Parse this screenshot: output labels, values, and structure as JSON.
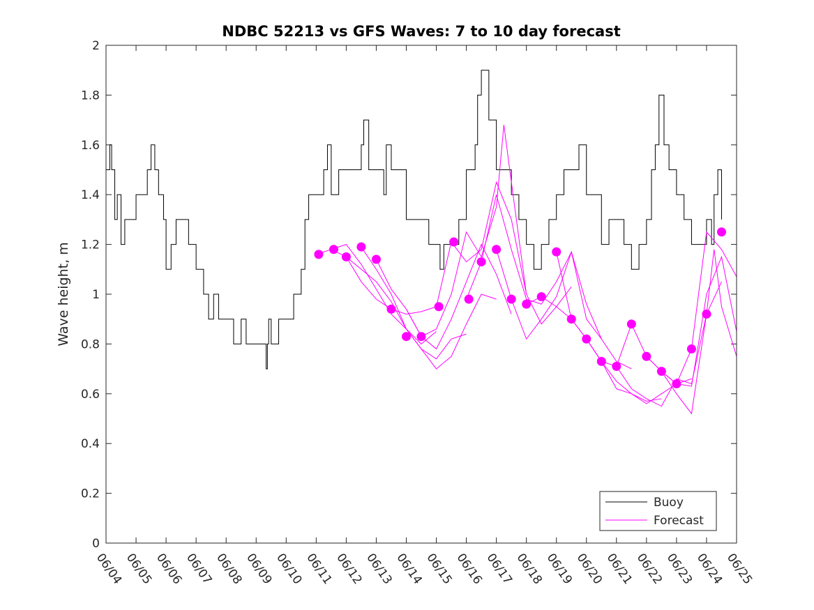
{
  "chart_data": {
    "type": "line",
    "title": "NDBC 52213 vs GFS Waves: 7 to 10 day forecast",
    "xlabel": "",
    "ylabel": "Wave height, m",
    "xlim": [
      "06/04",
      "06/25"
    ],
    "ylim": [
      0,
      2
    ],
    "x_tick_labels": [
      "06/04",
      "06/05",
      "06/06",
      "06/07",
      "06/08",
      "06/09",
      "06/10",
      "06/11",
      "06/12",
      "06/13",
      "06/14",
      "06/15",
      "06/16",
      "06/17",
      "06/18",
      "06/19",
      "06/20",
      "06/21",
      "06/22",
      "06/23",
      "06/24",
      "06/25"
    ],
    "y_ticks": [
      0,
      0.2,
      0.4,
      0.6,
      0.8,
      1,
      1.2,
      1.4,
      1.6,
      1.8,
      2
    ],
    "y_tick_labels": [
      "0",
      "0.2",
      "0.4",
      "0.6",
      "0.8",
      "1",
      "1.2",
      "1.4",
      "1.6",
      "1.8",
      "2"
    ],
    "grid": false,
    "legend_position": "bottom-right",
    "series": [
      {
        "name": "Buoy",
        "color": "#000000",
        "style": "line",
        "x": [
          "06/04 00:00",
          "06/04 03:00",
          "06/04 04:30",
          "06/04 07:00",
          "06/04 09:00",
          "06/04 12:00",
          "06/04 15:00",
          "06/04 18:00",
          "06/05 00:00",
          "06/05 06:00",
          "06/05 09:00",
          "06/05 12:00",
          "06/05 15:00",
          "06/05 18:00",
          "06/05 22:00",
          "06/06 00:00",
          "06/06 04:00",
          "06/06 08:00",
          "06/06 12:00",
          "06/06 18:00",
          "06/07 00:00",
          "06/07 06:00",
          "06/07 10:00",
          "06/07 14:00",
          "06/07 18:00",
          "06/08 00:00",
          "06/08 06:00",
          "06/08 12:00",
          "06/08 16:00",
          "06/08 20:00",
          "06/09 00:00",
          "06/09 06:00",
          "06/09 08:00",
          "06/09 09:00",
          "06/09 10:00",
          "06/09 12:00",
          "06/09 18:00",
          "06/10 00:00",
          "06/10 06:00",
          "06/10 12:00",
          "06/10 15:00",
          "06/10 18:00",
          "06/11 00:00",
          "06/11 06:00",
          "06/11 09:00",
          "06/11 12:00",
          "06/11 18:00",
          "06/12 00:00",
          "06/12 06:00",
          "06/12 12:00",
          "06/12 14:00",
          "06/12 18:00",
          "06/13 00:00",
          "06/13 06:00",
          "06/13 08:00",
          "06/13 12:00",
          "06/13 18:00",
          "06/14 00:00",
          "06/14 06:00",
          "06/14 12:00",
          "06/14 18:00",
          "06/15 00:00",
          "06/15 03:00",
          "06/15 06:00",
          "06/15 12:00",
          "06/15 18:00",
          "06/16 00:00",
          "06/16 04:00",
          "06/16 07:00",
          "06/16 09:00",
          "06/16 12:00",
          "06/16 18:00",
          "06/17 00:00",
          "06/17 06:00",
          "06/17 12:00",
          "06/17 18:00",
          "06/18 00:00",
          "06/18 06:00",
          "06/18 12:00",
          "06/18 18:00",
          "06/19 00:00",
          "06/19 06:00",
          "06/19 12:00",
          "06/19 18:00",
          "06/20 00:00",
          "06/20 06:00",
          "06/20 12:00",
          "06/20 18:00",
          "06/21 00:00",
          "06/21 06:00",
          "06/21 12:00",
          "06/21 18:00",
          "06/22 00:00",
          "06/22 04:00",
          "06/22 07:00",
          "06/22 10:00",
          "06/22 14:00",
          "06/22 18:00",
          "06/23 00:00",
          "06/23 06:00",
          "06/23 12:00",
          "06/23 18:00",
          "06/24 00:00",
          "06/24 04:00",
          "06/24 06:00",
          "06/24 09:00",
          "06/24 12:00"
        ],
        "y": [
          1.5,
          1.6,
          1.5,
          1.3,
          1.4,
          1.2,
          1.3,
          1.3,
          1.4,
          1.4,
          1.5,
          1.6,
          1.5,
          1.4,
          1.3,
          1.1,
          1.2,
          1.3,
          1.3,
          1.2,
          1.1,
          1.0,
          0.9,
          1.0,
          0.9,
          0.9,
          0.8,
          0.9,
          0.8,
          0.8,
          0.8,
          0.8,
          0.7,
          0.8,
          0.9,
          0.8,
          0.9,
          0.9,
          1.0,
          1.1,
          1.3,
          1.4,
          1.4,
          1.5,
          1.6,
          1.4,
          1.5,
          1.5,
          1.5,
          1.6,
          1.7,
          1.5,
          1.5,
          1.4,
          1.6,
          1.5,
          1.5,
          1.3,
          1.3,
          1.3,
          1.2,
          1.2,
          1.1,
          1.2,
          1.2,
          1.3,
          1.5,
          1.5,
          1.6,
          1.8,
          1.9,
          1.7,
          1.5,
          1.5,
          1.4,
          1.3,
          1.2,
          1.1,
          1.2,
          1.3,
          1.4,
          1.5,
          1.5,
          1.6,
          1.4,
          1.4,
          1.2,
          1.3,
          1.3,
          1.2,
          1.1,
          1.2,
          1.3,
          1.5,
          1.6,
          1.8,
          1.6,
          1.5,
          1.4,
          1.3,
          1.2,
          1.2,
          1.3,
          1.2,
          1.4,
          1.5,
          1.3
        ]
      },
      {
        "name": "Forecast",
        "color": "#ff00ff",
        "style": "line",
        "runs": [
          {
            "x": [
              "06/11 00:00",
              "06/11 12:00",
              "06/12 00:00",
              "06/12 12:00",
              "06/13 00:00",
              "06/13 12:00",
              "06/14 00:00",
              "06/14 12:00",
              "06/15 00:00"
            ],
            "y": [
              1.16,
              1.18,
              1.15,
              1.05,
              0.98,
              0.94,
              0.92,
              0.93,
              0.95
            ]
          },
          {
            "x": [
              "06/11 12:00",
              "06/12 00:00",
              "06/12 12:00",
              "06/13 00:00",
              "06/13 12:00",
              "06/14 00:00",
              "06/14 12:00",
              "06/15 00:00"
            ],
            "y": [
              1.18,
              1.2,
              1.12,
              1.02,
              0.92,
              0.86,
              0.8,
              0.85
            ]
          },
          {
            "x": [
              "06/12 00:00",
              "06/12 12:00",
              "06/13 00:00",
              "06/13 12:00",
              "06/14 00:00",
              "06/14 12:00",
              "06/15 00:00",
              "06/15 12:00",
              "06/16 00:00"
            ],
            "y": [
              1.15,
              1.1,
              1.05,
              0.97,
              0.86,
              0.78,
              0.74,
              0.82,
              0.84
            ]
          },
          {
            "x": [
              "06/12 12:00",
              "06/13 00:00",
              "06/13 12:00",
              "06/14 00:00",
              "06/14 12:00",
              "06/15 00:00",
              "06/15 12:00",
              "06/16 00:00",
              "06/16 12:00",
              "06/17 00:00"
            ],
            "y": [
              1.19,
              1.1,
              1.0,
              0.86,
              0.78,
              0.7,
              0.75,
              0.88,
              1.0,
              0.98
            ]
          },
          {
            "x": [
              "06/13 00:00",
              "06/13 12:00",
              "06/14 00:00",
              "06/14 12:00",
              "06/15 00:00",
              "06/15 12:00",
              "06/16 00:00",
              "06/16 12:00",
              "06/17 00:00",
              "06/17 12:00"
            ],
            "y": [
              1.14,
              1.02,
              0.94,
              0.83,
              0.78,
              0.9,
              1.05,
              1.2,
              1.08,
              0.92
            ]
          },
          {
            "x": [
              "06/14 00:00",
              "06/14 12:00",
              "06/15 00:00",
              "06/15 12:00",
              "06/16 00:00",
              "06/16 12:00",
              "06/17 00:00",
              "06/17 06:00",
              "06/17 12:00",
              "06/18 00:00"
            ],
            "y": [
              0.94,
              0.83,
              0.86,
              1.0,
              1.25,
              1.15,
              1.35,
              1.68,
              1.45,
              1.0
            ]
          },
          {
            "x": [
              "06/15 00:00",
              "06/15 12:00",
              "06/16 00:00",
              "06/16 12:00",
              "06/17 00:00",
              "06/17 12:00",
              "06/18 00:00",
              "06/18 12:00",
              "06/19 00:00",
              "06/19 12:00"
            ],
            "y": [
              0.95,
              1.21,
              1.13,
              1.18,
              1.45,
              1.3,
              1.0,
              0.88,
              0.95,
              1.03
            ]
          },
          {
            "x": [
              "06/16 00:00",
              "06/16 12:00",
              "06/17 00:00",
              "06/17 12:00",
              "06/18 00:00",
              "06/18 12:00",
              "06/19 00:00",
              "06/19 12:00",
              "06/20 00:00",
              "06/20 12:00"
            ],
            "y": [
              0.98,
              1.13,
              1.4,
              1.18,
              0.98,
              0.96,
              1.05,
              1.17,
              0.9,
              0.82
            ]
          },
          {
            "x": [
              "06/17 00:00",
              "06/17 12:00",
              "06/18 00:00",
              "06/18 12:00",
              "06/19 00:00",
              "06/19 12:00",
              "06/20 00:00",
              "06/20 12:00",
              "06/21 00:00",
              "06/21 12:00"
            ],
            "y": [
              1.18,
              0.98,
              0.82,
              0.9,
              0.99,
              1.17,
              0.96,
              0.82,
              0.73,
              0.7
            ]
          },
          {
            "x": [
              "06/18 00:00",
              "06/18 12:00",
              "06/19 00:00",
              "06/19 12:00",
              "06/20 00:00",
              "06/20 12:00",
              "06/21 00:00",
              "06/21 12:00",
              "06/22 00:00",
              "06/22 12:00"
            ],
            "y": [
              0.96,
              0.99,
              0.95,
              0.9,
              0.82,
              0.73,
              0.65,
              0.6,
              0.57,
              0.58
            ]
          },
          {
            "x": [
              "06/19 00:00",
              "06/19 12:00",
              "06/20 00:00",
              "06/20 12:00",
              "06/21 00:00",
              "06/21 12:00",
              "06/22 00:00",
              "06/22 12:00",
              "06/23 00:00",
              "06/23 12:00"
            ],
            "y": [
              1.17,
              0.9,
              0.82,
              0.73,
              0.62,
              0.6,
              0.56,
              0.6,
              0.64,
              0.66
            ]
          },
          {
            "x": [
              "06/20 00:00",
              "06/20 12:00",
              "06/21 00:00",
              "06/21 12:00",
              "06/22 00:00",
              "06/22 12:00",
              "06/23 00:00",
              "06/23 12:00",
              "06/24 00:00",
              "06/24 12:00"
            ],
            "y": [
              0.82,
              0.73,
              0.71,
              0.62,
              0.58,
              0.55,
              0.66,
              0.64,
              0.92,
              1.05
            ]
          },
          {
            "x": [
              "06/21 00:00",
              "06/21 12:00",
              "06/22 00:00",
              "06/22 12:00",
              "06/23 00:00",
              "06/23 12:00",
              "06/24 00:00",
              "06/24 12:00",
              "06/25 00:00"
            ],
            "y": [
              0.71,
              0.88,
              0.75,
              0.69,
              0.64,
              0.63,
              1.0,
              1.15,
              0.85
            ]
          },
          {
            "x": [
              "06/22 00:00",
              "06/22 12:00",
              "06/23 00:00",
              "06/23 12:00",
              "06/24 00:00",
              "06/24 12:00",
              "06/25 00:00"
            ],
            "y": [
              0.75,
              0.69,
              0.64,
              0.78,
              1.25,
              1.18,
              1.07
            ]
          },
          {
            "x": [
              "06/22 12:00",
              "06/23 00:00",
              "06/23 12:00",
              "06/24 00:00",
              "06/24 06:00",
              "06/24 12:00",
              "06/25 00:00"
            ],
            "y": [
              0.69,
              0.6,
              0.52,
              0.92,
              1.18,
              0.95,
              0.75
            ]
          }
        ],
        "markers": {
          "x": [
            "06/11 02:00",
            "06/11 14:00",
            "06/12 00:00",
            "06/12 12:00",
            "06/13 00:00",
            "06/13 12:00",
            "06/14 00:00",
            "06/14 12:00",
            "06/15 02:00",
            "06/15 14:00",
            "06/16 02:00",
            "06/16 12:00",
            "06/17 00:00",
            "06/17 12:00",
            "06/18 00:00",
            "06/18 12:00",
            "06/19 00:00",
            "06/19 12:00",
            "06/20 00:00",
            "06/20 12:00",
            "06/21 00:00",
            "06/21 12:00",
            "06/22 00:00",
            "06/22 12:00",
            "06/23 00:00",
            "06/23 12:00",
            "06/24 00:00",
            "06/24 12:00"
          ],
          "y": [
            1.16,
            1.18,
            1.15,
            1.19,
            1.14,
            0.94,
            0.83,
            0.83,
            0.95,
            1.21,
            0.98,
            1.13,
            1.18,
            0.98,
            0.96,
            0.99,
            1.17,
            0.9,
            0.82,
            0.73,
            0.71,
            0.88,
            0.75,
            0.69,
            0.64,
            0.78,
            0.92,
            1.25
          ]
        }
      }
    ]
  }
}
